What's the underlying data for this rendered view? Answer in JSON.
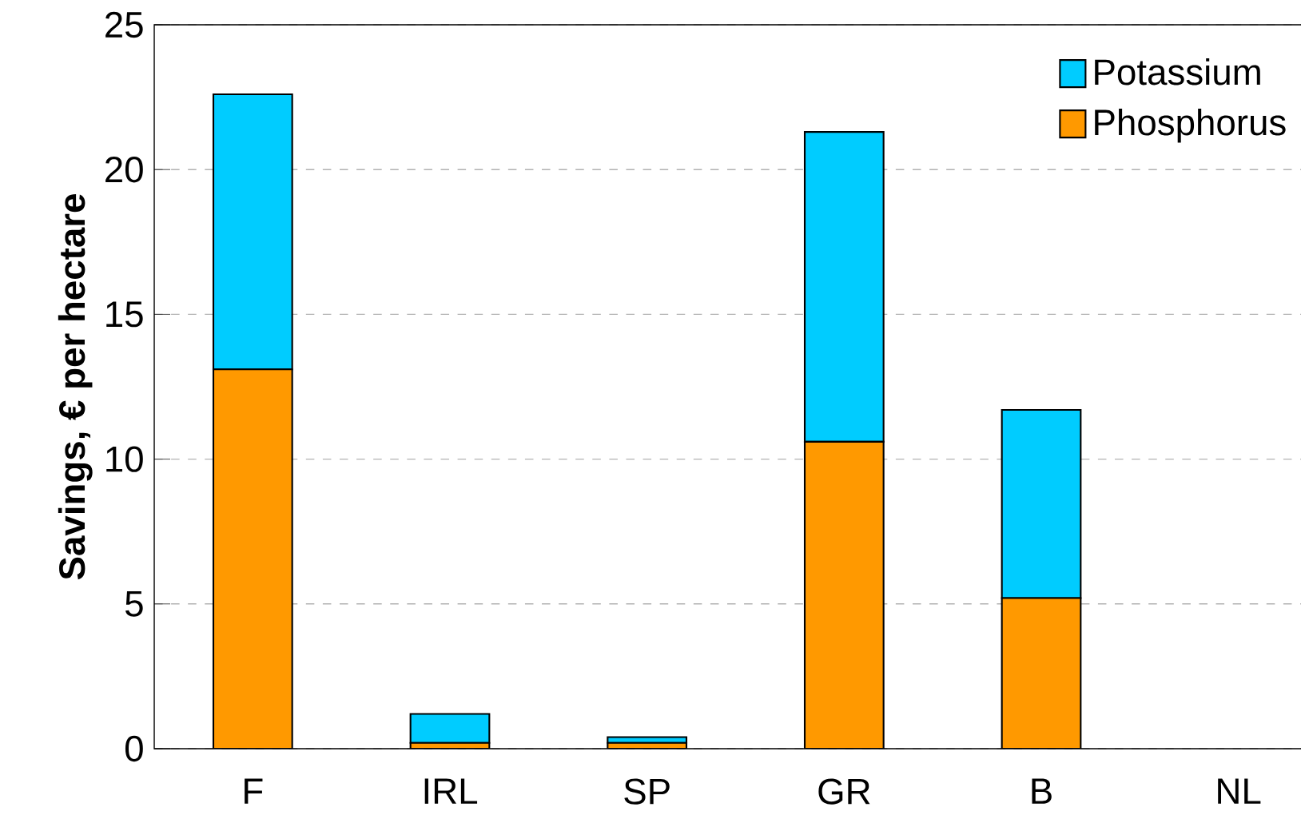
{
  "chart_data": {
    "type": "bar",
    "ylabel": "Savings, € per hectare",
    "categories": [
      "F",
      "IRL",
      "SP",
      "GR",
      "B",
      "NL"
    ],
    "stacked": true,
    "series": [
      {
        "name": "Phosphorus",
        "color": "#ff9900",
        "values": [
          13.1,
          0.2,
          0.2,
          10.6,
          5.2,
          0
        ]
      },
      {
        "name": "Potassium",
        "color": "#00ccff",
        "values": [
          9.5,
          1.0,
          0.2,
          10.7,
          6.5,
          0
        ]
      }
    ],
    "ylim": [
      0,
      25
    ],
    "yticks": [
      0,
      5,
      10,
      15,
      20,
      25
    ],
    "grid": "y",
    "legend": "top right"
  }
}
